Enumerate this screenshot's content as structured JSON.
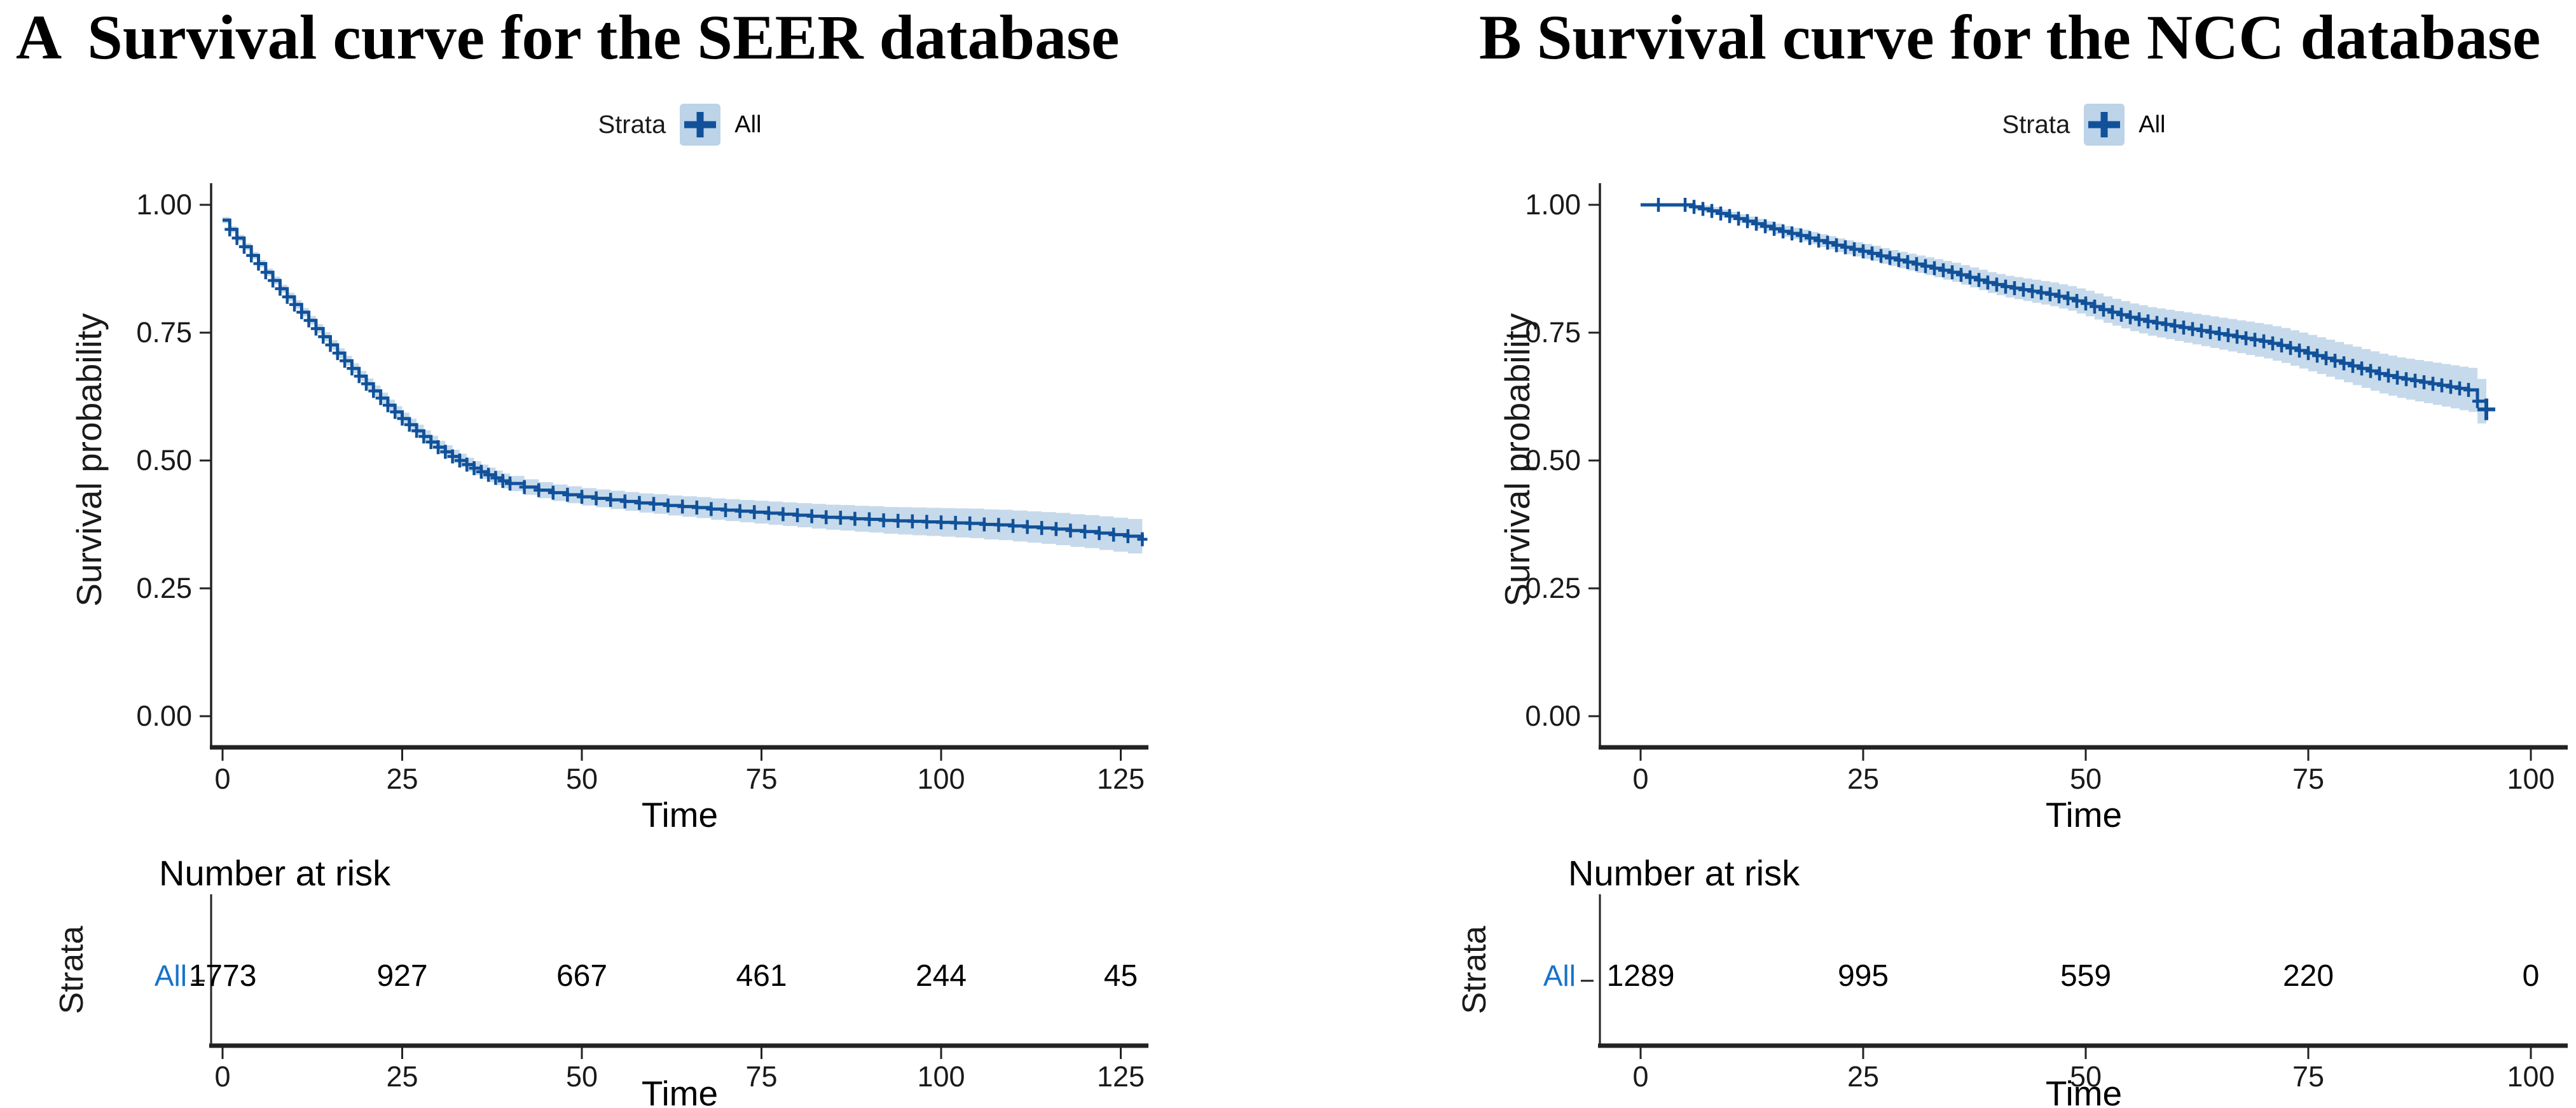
{
  "colors": {
    "curve": "#11519a",
    "band": "#bcd3e8",
    "strata_label": "#1673c8",
    "axis": "#222222",
    "tick_text": "#1a1a1a"
  },
  "panels": [
    {
      "letter": "A",
      "title": "Survival curve for the SEER database",
      "legend": {
        "title": "Strata",
        "item": "All"
      },
      "ylabel": "Survival probability",
      "xlabel": "Time",
      "risk": {
        "header": "Number at risk",
        "axis_label": "Strata",
        "row_label": "All",
        "xlabel": "Time"
      }
    },
    {
      "letter": "B",
      "title": "Survival curve for the NCC database",
      "legend": {
        "title": "Strata",
        "item": "All"
      },
      "ylabel": "Survival probability",
      "xlabel": "Time",
      "risk": {
        "header": "Number at risk",
        "axis_label": "Strata",
        "row_label": "All",
        "xlabel": "Time"
      }
    }
  ],
  "chart_data": [
    {
      "type": "line",
      "subtype": "kaplan-meier-step",
      "title": "A Survival curve for the SEER database",
      "xlabel": "Time",
      "ylabel": "Survival probability",
      "xlim": [
        0,
        129
      ],
      "ylim": [
        0,
        1
      ],
      "grid": false,
      "legend_position": "top",
      "xticks": [
        {
          "v": 0,
          "label": "0"
        },
        {
          "v": 25,
          "label": "25"
        },
        {
          "v": 50,
          "label": "50"
        },
        {
          "v": 75,
          "label": "75"
        },
        {
          "v": 100,
          "label": "100"
        },
        {
          "v": 125,
          "label": "125"
        }
      ],
      "yticks": [
        {
          "v": 1,
          "label": "1.00"
        },
        {
          "v": 0.75,
          "label": "0.75"
        },
        {
          "v": 0.5,
          "label": "0.50"
        },
        {
          "v": 0.25,
          "label": "0.25"
        },
        {
          "v": 0,
          "label": "0.00"
        }
      ],
      "series": [
        {
          "name": "All",
          "censor_from": 0.5,
          "ci": {
            "base": 0.006,
            "per_t": 0.00022
          },
          "end_ci_lower": null,
          "big_end_censor": false,
          "points": [
            [
              0,
              0.97
            ],
            [
              1,
              0.952
            ],
            [
              2,
              0.935
            ],
            [
              3,
              0.918
            ],
            [
              4,
              0.901
            ],
            [
              5,
              0.885
            ],
            [
              6,
              0.868
            ],
            [
              7,
              0.852
            ],
            [
              8,
              0.836
            ],
            [
              9,
              0.82
            ],
            [
              10,
              0.805
            ],
            [
              11,
              0.79
            ],
            [
              12,
              0.774
            ],
            [
              13,
              0.758
            ],
            [
              14,
              0.742
            ],
            [
              15,
              0.726
            ],
            [
              16,
              0.71
            ],
            [
              17,
              0.695
            ],
            [
              18,
              0.68
            ],
            [
              19,
              0.665
            ],
            [
              20,
              0.65
            ],
            [
              21,
              0.636
            ],
            [
              22,
              0.622
            ],
            [
              23,
              0.608
            ],
            [
              24,
              0.595
            ],
            [
              25,
              0.582
            ],
            [
              26,
              0.57
            ],
            [
              27,
              0.558
            ],
            [
              28,
              0.547
            ],
            [
              29,
              0.536
            ],
            [
              30,
              0.526
            ],
            [
              31,
              0.517
            ],
            [
              32,
              0.508
            ],
            [
              33,
              0.5
            ],
            [
              34,
              0.492
            ],
            [
              35,
              0.485
            ],
            [
              36,
              0.478
            ],
            [
              37,
              0.472
            ],
            [
              38,
              0.466
            ],
            [
              39,
              0.46
            ],
            [
              40,
              0.455
            ],
            [
              42,
              0.448
            ],
            [
              44,
              0.442
            ],
            [
              46,
              0.437
            ],
            [
              48,
              0.433
            ],
            [
              50,
              0.429
            ],
            [
              52,
              0.426
            ],
            [
              54,
              0.423
            ],
            [
              56,
              0.42
            ],
            [
              58,
              0.417
            ],
            [
              60,
              0.415
            ],
            [
              62,
              0.412
            ],
            [
              64,
              0.41
            ],
            [
              66,
              0.408
            ],
            [
              68,
              0.405
            ],
            [
              70,
              0.403
            ],
            [
              72,
              0.401
            ],
            [
              74,
              0.399
            ],
            [
              76,
              0.397
            ],
            [
              78,
              0.395
            ],
            [
              80,
              0.393
            ],
            [
              82,
              0.391
            ],
            [
              84,
              0.389
            ],
            [
              86,
              0.388
            ],
            [
              88,
              0.386
            ],
            [
              90,
              0.385
            ],
            [
              92,
              0.383
            ],
            [
              94,
              0.382
            ],
            [
              96,
              0.381
            ],
            [
              98,
              0.38
            ],
            [
              100,
              0.379
            ],
            [
              102,
              0.378
            ],
            [
              104,
              0.377
            ],
            [
              106,
              0.375
            ],
            [
              108,
              0.374
            ],
            [
              110,
              0.372
            ],
            [
              112,
              0.37
            ],
            [
              114,
              0.368
            ],
            [
              116,
              0.366
            ],
            [
              118,
              0.363
            ],
            [
              120,
              0.361
            ],
            [
              122,
              0.358
            ],
            [
              124,
              0.355
            ],
            [
              126,
              0.352
            ],
            [
              128,
              0.346
            ]
          ]
        }
      ],
      "risk_table": {
        "row_label": "All",
        "times": [
          0,
          25,
          50,
          75,
          100,
          125
        ],
        "counts": [
          "1773",
          "927",
          "667",
          "461",
          "244",
          "45"
        ]
      }
    },
    {
      "type": "line",
      "subtype": "kaplan-meier-step",
      "title": "B Survival curve for the NCC database",
      "xlabel": "Time",
      "ylabel": "Survival probability",
      "xlim": [
        0,
        104
      ],
      "ylim": [
        0,
        1
      ],
      "grid": false,
      "legend_position": "top",
      "xticks": [
        {
          "v": 0,
          "label": "0"
        },
        {
          "v": 25,
          "label": "25"
        },
        {
          "v": 50,
          "label": "50"
        },
        {
          "v": 75,
          "label": "75"
        },
        {
          "v": 100,
          "label": "100"
        }
      ],
      "yticks": [
        {
          "v": 1,
          "label": "1.00"
        },
        {
          "v": 0.75,
          "label": "0.75"
        },
        {
          "v": 0.5,
          "label": "0.50"
        },
        {
          "v": 0.25,
          "label": "0.25"
        },
        {
          "v": 0,
          "label": "0.00"
        }
      ],
      "series": [
        {
          "name": "All",
          "censor_from": 1,
          "ci": {
            "base": 0.004,
            "per_t": 0.00042
          },
          "end_ci_lower": 0.52,
          "big_end_censor": true,
          "points": [
            [
              0,
              1.0
            ],
            [
              2,
              1.0
            ],
            [
              5,
              1.0
            ],
            [
              6,
              0.996
            ],
            [
              7,
              0.992
            ],
            [
              8,
              0.988
            ],
            [
              9,
              0.983
            ],
            [
              10,
              0.978
            ],
            [
              11,
              0.973
            ],
            [
              12,
              0.968
            ],
            [
              13,
              0.963
            ],
            [
              14,
              0.958
            ],
            [
              15,
              0.953
            ],
            [
              16,
              0.948
            ],
            [
              17,
              0.944
            ],
            [
              18,
              0.94
            ],
            [
              19,
              0.935
            ],
            [
              20,
              0.93
            ],
            [
              21,
              0.926
            ],
            [
              22,
              0.921
            ],
            [
              23,
              0.917
            ],
            [
              24,
              0.913
            ],
            [
              25,
              0.909
            ],
            [
              26,
              0.905
            ],
            [
              27,
              0.9
            ],
            [
              28,
              0.896
            ],
            [
              29,
              0.892
            ],
            [
              30,
              0.888
            ],
            [
              31,
              0.884
            ],
            [
              32,
              0.88
            ],
            [
              33,
              0.876
            ],
            [
              34,
              0.872
            ],
            [
              35,
              0.868
            ],
            [
              36,
              0.863
            ],
            [
              37,
              0.858
            ],
            [
              38,
              0.853
            ],
            [
              39,
              0.848
            ],
            [
              40,
              0.844
            ],
            [
              41,
              0.84
            ],
            [
              42,
              0.837
            ],
            [
              43,
              0.834
            ],
            [
              44,
              0.831
            ],
            [
              45,
              0.828
            ],
            [
              46,
              0.825
            ],
            [
              47,
              0.821
            ],
            [
              48,
              0.817
            ],
            [
              49,
              0.812
            ],
            [
              50,
              0.807
            ],
            [
              51,
              0.801
            ],
            [
              52,
              0.795
            ],
            [
              53,
              0.79
            ],
            [
              54,
              0.785
            ],
            [
              55,
              0.78
            ],
            [
              56,
              0.776
            ],
            [
              57,
              0.772
            ],
            [
              58,
              0.769
            ],
            [
              59,
              0.766
            ],
            [
              60,
              0.763
            ],
            [
              61,
              0.76
            ],
            [
              62,
              0.757
            ],
            [
              63,
              0.754
            ],
            [
              64,
              0.751
            ],
            [
              65,
              0.748
            ],
            [
              66,
              0.745
            ],
            [
              67,
              0.742
            ],
            [
              68,
              0.739
            ],
            [
              69,
              0.736
            ],
            [
              70,
              0.733
            ],
            [
              71,
              0.729
            ],
            [
              72,
              0.725
            ],
            [
              73,
              0.72
            ],
            [
              74,
              0.715
            ],
            [
              75,
              0.71
            ],
            [
              76,
              0.705
            ],
            [
              77,
              0.7
            ],
            [
              78,
              0.695
            ],
            [
              79,
              0.69
            ],
            [
              80,
              0.685
            ],
            [
              81,
              0.68
            ],
            [
              82,
              0.675
            ],
            [
              83,
              0.67
            ],
            [
              84,
              0.666
            ],
            [
              85,
              0.662
            ],
            [
              86,
              0.659
            ],
            [
              87,
              0.656
            ],
            [
              88,
              0.653
            ],
            [
              89,
              0.65
            ],
            [
              90,
              0.647
            ],
            [
              91,
              0.644
            ],
            [
              92,
              0.641
            ],
            [
              93,
              0.638
            ],
            [
              94,
              0.616
            ],
            [
              95,
              0.6
            ]
          ]
        }
      ],
      "risk_table": {
        "row_label": "All",
        "times": [
          0,
          25,
          50,
          75,
          100
        ],
        "counts": [
          "1289",
          "995",
          "559",
          "220",
          "0"
        ]
      }
    }
  ]
}
